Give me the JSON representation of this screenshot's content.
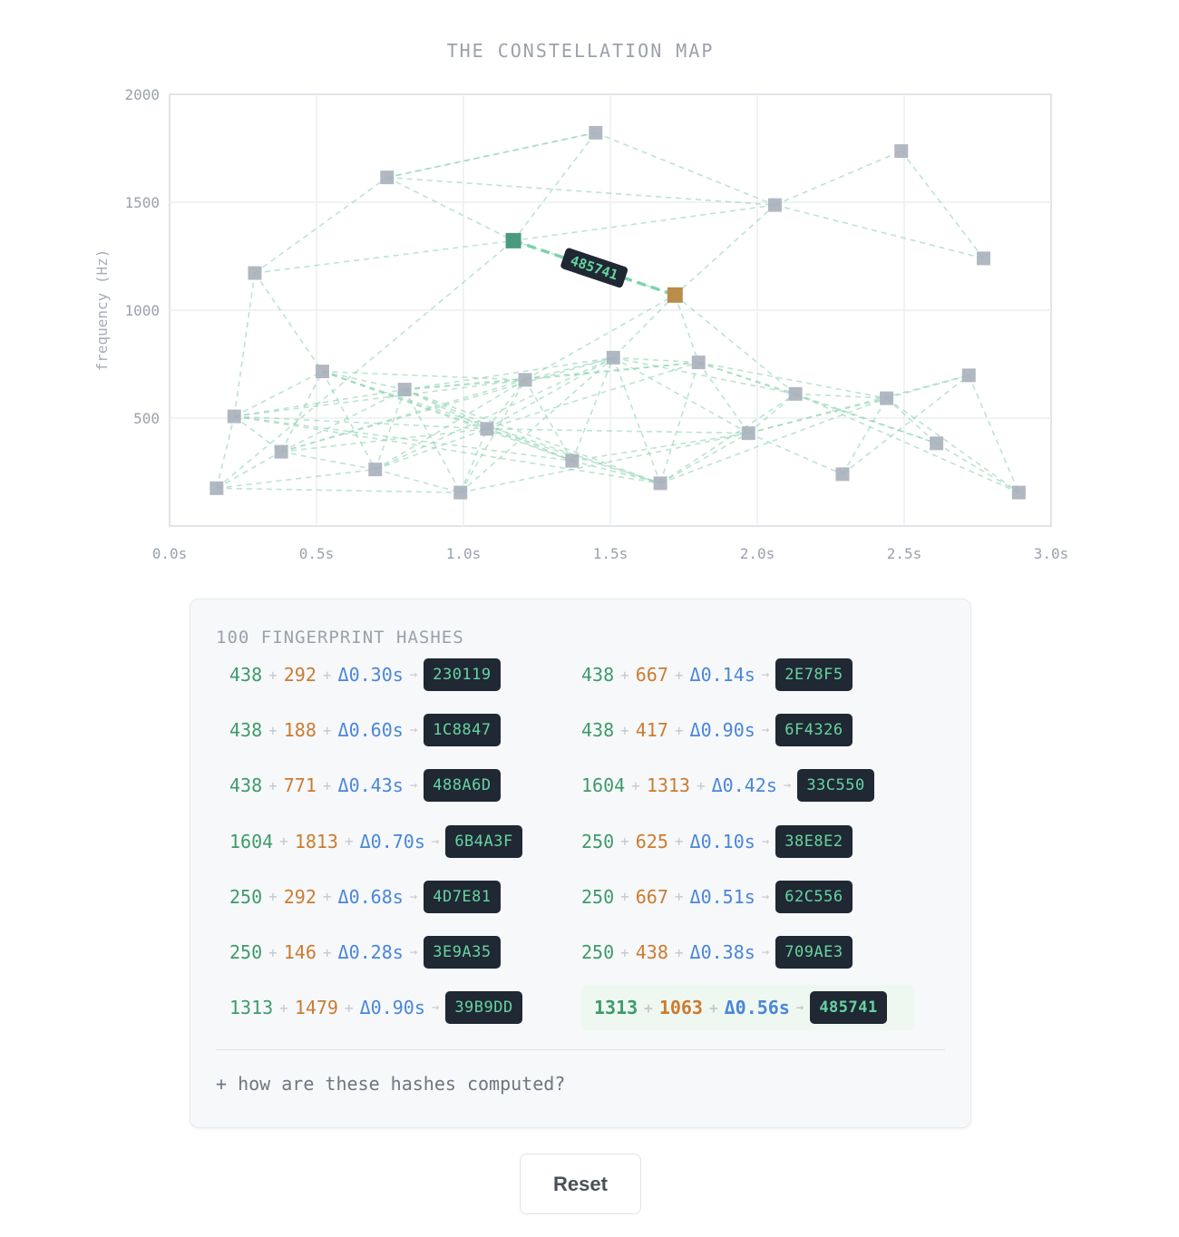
{
  "page": {
    "title": "THE CONSTELLATION MAP"
  },
  "chart_data": {
    "type": "scatter",
    "title": "THE CONSTELLATION MAP",
    "xlabel": "",
    "ylabel": "frequency (Hz)",
    "xlim": [
      0,
      3.0
    ],
    "ylim": [
      0,
      2000
    ],
    "x_ticks": [
      "0.0s",
      "0.5s",
      "1.0s",
      "1.5s",
      "2.0s",
      "2.5s",
      "3.0s"
    ],
    "y_ticks": [
      "500",
      "1000",
      "1500",
      "2000"
    ],
    "grid": true,
    "peaks": [
      {
        "t": 0.16,
        "f": 175
      },
      {
        "t": 0.22,
        "f": 508
      },
      {
        "t": 0.29,
        "f": 1172
      },
      {
        "t": 0.38,
        "f": 344
      },
      {
        "t": 0.52,
        "f": 716
      },
      {
        "t": 0.7,
        "f": 262
      },
      {
        "t": 0.74,
        "f": 1615
      },
      {
        "t": 0.8,
        "f": 632
      },
      {
        "t": 0.99,
        "f": 155
      },
      {
        "t": 1.08,
        "f": 450
      },
      {
        "t": 1.17,
        "f": 1322
      },
      {
        "t": 1.21,
        "f": 677
      },
      {
        "t": 1.37,
        "f": 302
      },
      {
        "t": 1.45,
        "f": 1822
      },
      {
        "t": 1.51,
        "f": 780
      },
      {
        "t": 1.67,
        "f": 198
      },
      {
        "t": 1.72,
        "f": 1070
      },
      {
        "t": 1.8,
        "f": 758
      },
      {
        "t": 1.97,
        "f": 430
      },
      {
        "t": 2.06,
        "f": 1487
      },
      {
        "t": 2.13,
        "f": 612
      },
      {
        "t": 2.29,
        "f": 240
      },
      {
        "t": 2.44,
        "f": 592
      },
      {
        "t": 2.49,
        "f": 1737
      },
      {
        "t": 2.61,
        "f": 383
      },
      {
        "t": 2.72,
        "f": 698
      },
      {
        "t": 2.77,
        "f": 1240
      },
      {
        "t": 2.89,
        "f": 155
      }
    ],
    "links": [
      [
        0,
        1
      ],
      [
        0,
        3
      ],
      [
        0,
        8
      ],
      [
        0,
        5
      ],
      [
        0,
        10
      ],
      [
        1,
        2
      ],
      [
        1,
        4
      ],
      [
        1,
        3
      ],
      [
        1,
        7
      ],
      [
        1,
        9
      ],
      [
        1,
        12
      ],
      [
        1,
        15
      ],
      [
        1,
        11
      ],
      [
        2,
        6
      ],
      [
        2,
        4
      ],
      [
        2,
        10
      ],
      [
        3,
        4
      ],
      [
        3,
        7
      ],
      [
        3,
        9
      ],
      [
        3,
        5
      ],
      [
        3,
        11
      ],
      [
        3,
        14
      ],
      [
        4,
        7
      ],
      [
        4,
        9
      ],
      [
        4,
        5
      ],
      [
        4,
        11
      ],
      [
        4,
        12
      ],
      [
        4,
        15
      ],
      [
        5,
        7
      ],
      [
        5,
        8
      ],
      [
        5,
        9
      ],
      [
        5,
        11
      ],
      [
        5,
        14
      ],
      [
        6,
        10
      ],
      [
        6,
        13
      ],
      [
        7,
        8
      ],
      [
        7,
        9
      ],
      [
        7,
        11
      ],
      [
        7,
        12
      ],
      [
        7,
        15
      ],
      [
        7,
        14
      ],
      [
        7,
        17
      ],
      [
        8,
        9
      ],
      [
        8,
        11
      ],
      [
        8,
        14
      ],
      [
        8,
        18
      ],
      [
        9,
        11
      ],
      [
        9,
        12
      ],
      [
        9,
        14
      ],
      [
        9,
        15
      ],
      [
        9,
        17
      ],
      [
        9,
        18
      ],
      [
        10,
        13
      ],
      [
        10,
        16
      ],
      [
        11,
        12
      ],
      [
        11,
        14
      ],
      [
        11,
        17
      ],
      [
        11,
        16
      ],
      [
        12,
        14
      ],
      [
        12,
        15
      ],
      [
        12,
        18
      ],
      [
        13,
        19
      ],
      [
        14,
        15
      ],
      [
        14,
        17
      ],
      [
        14,
        18
      ],
      [
        14,
        20
      ],
      [
        15,
        17
      ],
      [
        15,
        18
      ],
      [
        15,
        20
      ],
      [
        15,
        22
      ],
      [
        16,
        17
      ],
      [
        16,
        19
      ],
      [
        16,
        20
      ],
      [
        16,
        14
      ],
      [
        17,
        18
      ],
      [
        17,
        20
      ],
      [
        17,
        22
      ],
      [
        17,
        24
      ],
      [
        18,
        20
      ],
      [
        18,
        22
      ],
      [
        18,
        21
      ],
      [
        18,
        25
      ],
      [
        19,
        23
      ],
      [
        19,
        26
      ],
      [
        20,
        22
      ],
      [
        20,
        24
      ],
      [
        20,
        27
      ],
      [
        21,
        22
      ],
      [
        21,
        25
      ],
      [
        22,
        24
      ],
      [
        22,
        25
      ],
      [
        22,
        27
      ],
      [
        23,
        26
      ],
      [
        24,
        27
      ],
      [
        25,
        27
      ],
      [
        6,
        19
      ],
      [
        13,
        6
      ],
      [
        19,
        10
      ]
    ],
    "anchor_index": 10,
    "target_index": 16,
    "highlight_hash": "485741"
  },
  "hash_panel": {
    "title": "100 FINGERPRINT HASHES",
    "operator": "+",
    "arrow": "→",
    "rows": [
      {
        "a": "438",
        "b": "292",
        "dt": "Δ0.30s",
        "hash": "230119"
      },
      {
        "a": "438",
        "b": "667",
        "dt": "Δ0.14s",
        "hash": "2E78F5"
      },
      {
        "a": "438",
        "b": "188",
        "dt": "Δ0.60s",
        "hash": "1C8847"
      },
      {
        "a": "438",
        "b": "417",
        "dt": "Δ0.90s",
        "hash": "6F4326"
      },
      {
        "a": "438",
        "b": "771",
        "dt": "Δ0.43s",
        "hash": "488A6D"
      },
      {
        "a": "1604",
        "b": "1313",
        "dt": "Δ0.42s",
        "hash": "33C550"
      },
      {
        "a": "1604",
        "b": "1813",
        "dt": "Δ0.70s",
        "hash": "6B4A3F"
      },
      {
        "a": "250",
        "b": "625",
        "dt": "Δ0.10s",
        "hash": "38E8E2"
      },
      {
        "a": "250",
        "b": "292",
        "dt": "Δ0.68s",
        "hash": "4D7E81"
      },
      {
        "a": "250",
        "b": "667",
        "dt": "Δ0.51s",
        "hash": "62C556"
      },
      {
        "a": "250",
        "b": "146",
        "dt": "Δ0.28s",
        "hash": "3E9A35"
      },
      {
        "a": "250",
        "b": "438",
        "dt": "Δ0.38s",
        "hash": "709AE3"
      },
      {
        "a": "1313",
        "b": "1479",
        "dt": "Δ0.90s",
        "hash": "39B9DD"
      },
      {
        "a": "1313",
        "b": "1063",
        "dt": "Δ0.56s",
        "hash": "485741",
        "highlighted": true
      }
    ],
    "expander_label": "+ how are these hashes computed?"
  },
  "reset_button": {
    "label": "Reset"
  },
  "colors": {
    "peak": "#a9b0bb",
    "link": "#8fd3b1",
    "anchor": "#4a9a82",
    "target": "#b98d4a",
    "hash_bg": "#1f2833",
    "hash_text": "#67d3a0"
  }
}
